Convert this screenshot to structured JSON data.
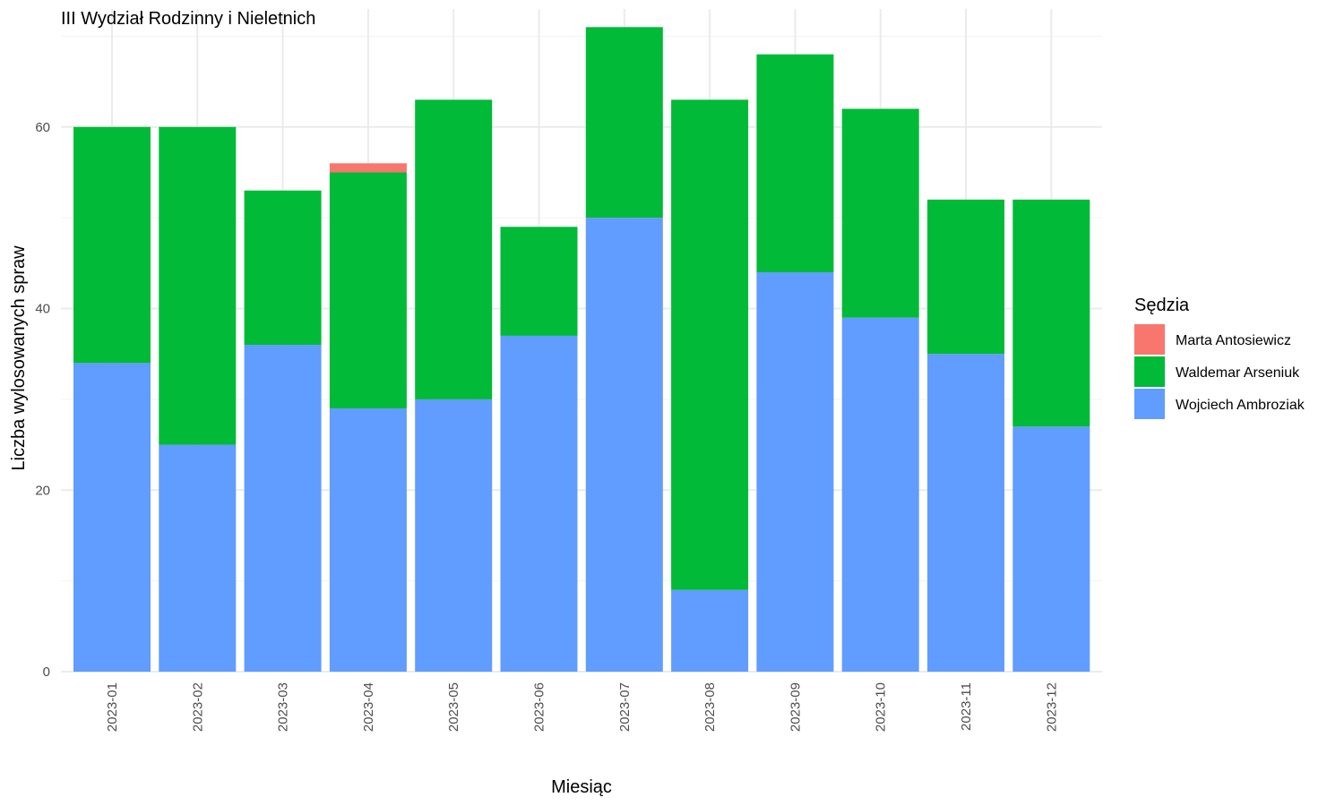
{
  "chart_data": {
    "type": "bar",
    "stacked": true,
    "title": "III Wydział Rodzinny i Nieletnich",
    "xlabel": "Miesiąc",
    "ylabel": "Liczba wylosowanych spraw",
    "ylim": [
      0,
      73
    ],
    "yticks": [
      0,
      20,
      40,
      60
    ],
    "grid": true,
    "legend": {
      "title": "Sędzia",
      "placement": "right"
    },
    "categories": [
      "2023-01",
      "2023-02",
      "2023-03",
      "2023-04",
      "2023-05",
      "2023-06",
      "2023-07",
      "2023-08",
      "2023-09",
      "2023-10",
      "2023-11",
      "2023-12"
    ],
    "series": [
      {
        "name": "Wojciech Ambroziak",
        "color": "#619CFF",
        "values": [
          34,
          25,
          36,
          29,
          30,
          37,
          50,
          9,
          44,
          39,
          35,
          27
        ]
      },
      {
        "name": "Waldemar Arseniuk",
        "color": "#00BA38",
        "values": [
          26,
          35,
          17,
          26,
          33,
          12,
          21,
          54,
          24,
          23,
          17,
          25
        ]
      },
      {
        "name": "Marta Antosiewicz",
        "color": "#F8766D",
        "values": [
          0,
          0,
          0,
          1,
          0,
          0,
          0,
          0,
          0,
          0,
          0,
          0
        ]
      }
    ],
    "legend_order": [
      "Marta Antosiewicz",
      "Waldemar Arseniuk",
      "Wojciech Ambroziak"
    ]
  }
}
